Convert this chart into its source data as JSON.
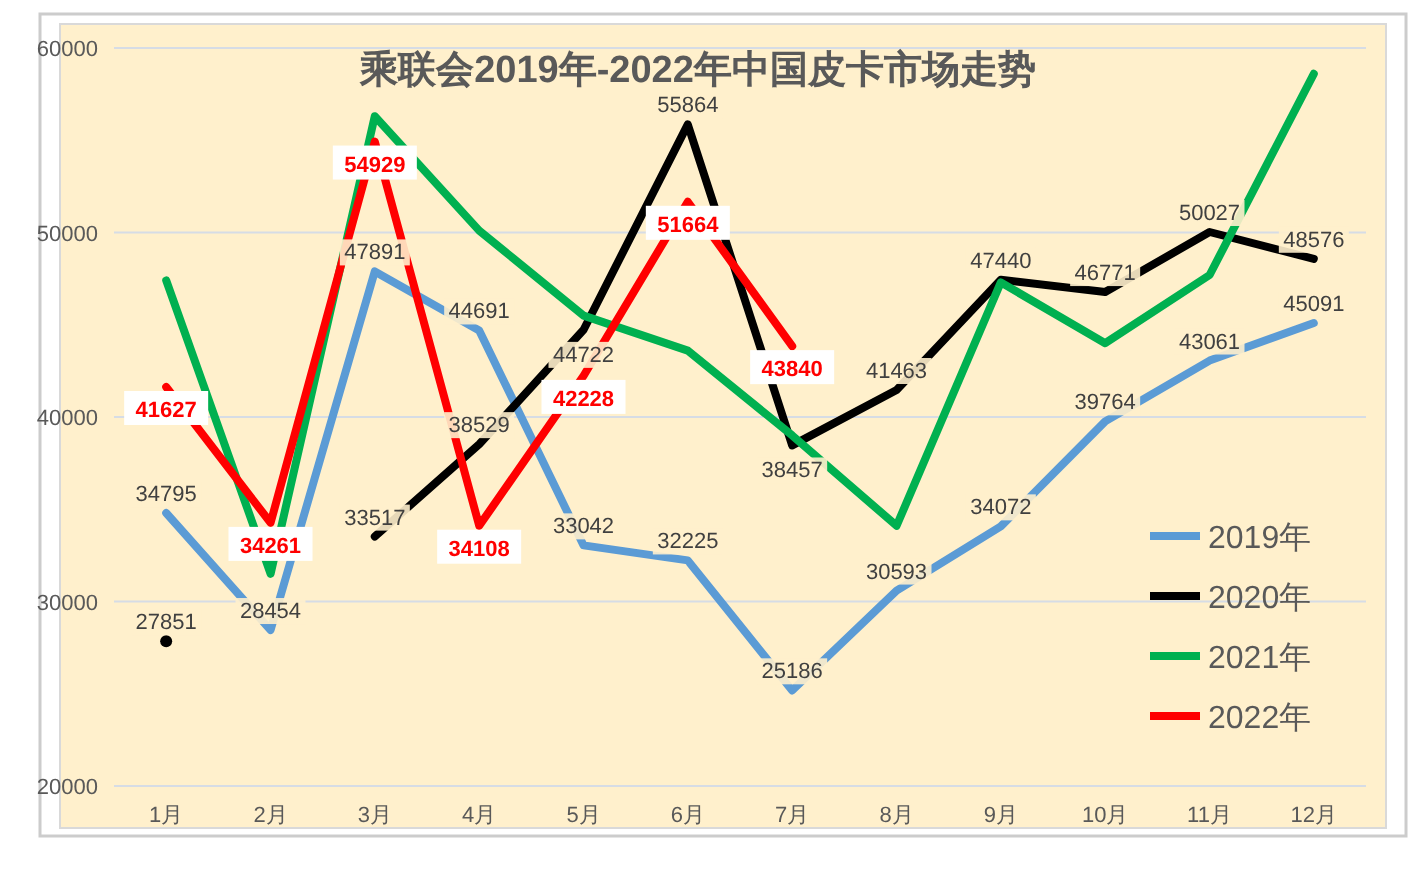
{
  "chart_data": {
    "type": "line",
    "title": "乘联会2019年-2022年中国皮卡市场走势",
    "categories": [
      "1月",
      "2月",
      "3月",
      "4月",
      "5月",
      "6月",
      "7月",
      "8月",
      "9月",
      "10月",
      "11月",
      "12月"
    ],
    "series": [
      {
        "name": "2019年",
        "color": "#5b9bd5",
        "values": [
          34795,
          28454,
          47891,
          44691,
          33042,
          32225,
          25186,
          30593,
          34072,
          39764,
          43061,
          45091
        ],
        "value_labels": [
          "34795",
          "28454",
          "47891",
          "44691",
          "33042",
          "32225",
          "25186",
          "30593",
          "34072",
          "39764",
          "43061",
          "45091"
        ]
      },
      {
        "name": "2020年",
        "color": "#000000",
        "values": [
          27851,
          null,
          33517,
          38529,
          44722,
          55864,
          38457,
          41463,
          47440,
          46771,
          50027,
          48576
        ],
        "value_labels": [
          "27851",
          null,
          "33517",
          "38529",
          "44722",
          "55864",
          "38457",
          "41463",
          "47440",
          "46771",
          "50027",
          "48576"
        ]
      },
      {
        "name": "2021年",
        "color": "#00b050",
        "values": [
          47400,
          31500,
          56300,
          50100,
          45500,
          43600,
          39000,
          34100,
          47300,
          44000,
          47700,
          58600
        ]
      },
      {
        "name": "2022年",
        "color": "#ff0000",
        "values": [
          41627,
          34261,
          54929,
          34108,
          42228,
          51664,
          43840,
          null,
          null,
          null,
          null,
          null
        ],
        "value_labels": [
          "41627",
          "34261",
          "54929",
          "34108",
          "42228",
          "51664",
          "43840",
          null,
          null,
          null,
          null,
          null
        ]
      }
    ],
    "ylim": [
      20000,
      60000
    ],
    "yticks": [
      20000,
      30000,
      40000,
      50000,
      60000
    ],
    "grid": "y",
    "legend": "right",
    "line_style": "solid",
    "marker": "none"
  }
}
